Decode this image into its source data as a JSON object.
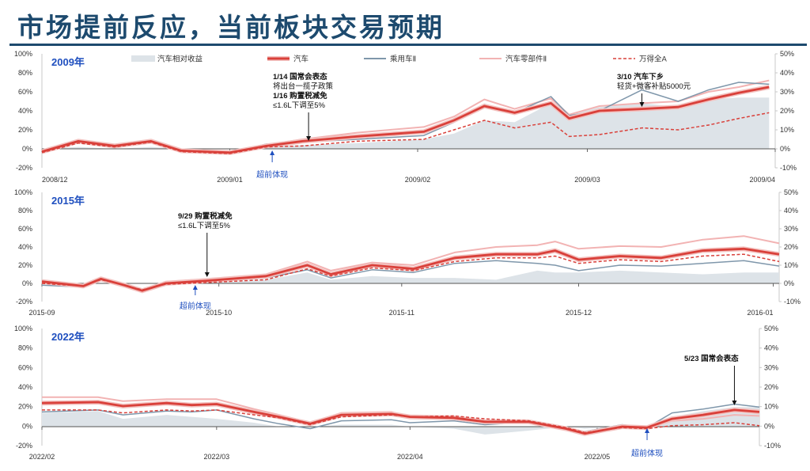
{
  "title": "市场提前反应，当前板块交易预期",
  "legend": [
    {
      "label": "汽车相对收益",
      "key": "relative"
    },
    {
      "label": "汽车",
      "key": "auto"
    },
    {
      "label": "乘用车Ⅱ",
      "key": "passenger"
    },
    {
      "label": "汽车零部件Ⅱ",
      "key": "parts"
    },
    {
      "label": "万得全A",
      "key": "winda"
    }
  ],
  "colors": {
    "title": "#1d4a6e",
    "auto": "#d9403a",
    "passenger": "#7f97ab",
    "parts": "#f2b3b3",
    "winda": "#d9403a",
    "relative": "#dde3e8",
    "year_label": "#1f4fbf",
    "lead_label": "#1f4fbf"
  },
  "chart_data": [
    {
      "type": "line",
      "year_label": "2009年",
      "left_axis": {
        "ticks": [
          "100%",
          "80%",
          "60%",
          "40%",
          "20%",
          "0%",
          "-20%"
        ],
        "ylim": [
          -20,
          100
        ]
      },
      "right_axis": {
        "ticks": [
          "50%",
          "40%",
          "30%",
          "20%",
          "10%",
          "0%",
          "-10%"
        ],
        "ylim": [
          -10,
          50
        ],
        "series": "relative"
      },
      "x_range": [
        "2008-12-01",
        "2009-04-01"
      ],
      "x_ticks": [
        {
          "date": "2008-12-01",
          "label": "2008/12"
        },
        {
          "date": "2009-01-01",
          "label": "2009/01"
        },
        {
          "date": "2009-02-01",
          "label": "2009/02"
        },
        {
          "date": "2009-03-01",
          "label": "2009/03"
        },
        {
          "date": "2009-04-01",
          "label": "2009/04"
        }
      ],
      "x": [
        "2008-12-01",
        "2008-12-07",
        "2008-12-13",
        "2008-12-19",
        "2008-12-24",
        "2009-01-01",
        "2009-01-07",
        "2009-01-13",
        "2009-01-22",
        "2009-02-02",
        "2009-02-07",
        "2009-02-12",
        "2009-02-17",
        "2009-02-23",
        "2009-02-26",
        "2009-03-03",
        "2009-03-10",
        "2009-03-16",
        "2009-03-21",
        "2009-03-26",
        "2009-03-31"
      ],
      "series": {
        "relative": [
          0,
          1,
          0,
          1,
          0,
          0,
          1,
          2,
          3,
          5,
          8,
          15,
          14,
          24,
          18,
          22,
          24,
          22,
          26,
          27,
          27
        ],
        "auto": [
          -3,
          8,
          3,
          8,
          -2,
          -4,
          3,
          8,
          13,
          18,
          30,
          45,
          38,
          48,
          32,
          40,
          42,
          44,
          52,
          59,
          65
        ],
        "passenger": [
          -2,
          9,
          3,
          8,
          -2,
          -4,
          5,
          7,
          10,
          14,
          28,
          47,
          38,
          55,
          35,
          40,
          62,
          50,
          62,
          70,
          68
        ],
        "parts": [
          -2,
          9,
          4,
          9,
          -1,
          -3,
          4,
          10,
          17,
          23,
          34,
          52,
          42,
          53,
          36,
          45,
          48,
          50,
          60,
          65,
          72
        ],
        "winda": [
          -4,
          6,
          2,
          7,
          -3,
          -5,
          2,
          3,
          8,
          10,
          20,
          30,
          22,
          28,
          13,
          15,
          22,
          20,
          25,
          32,
          38
        ]
      },
      "annotations": [
        {
          "date": "2009-01-14",
          "lines": [
            {
              "text": "1/14 国常会表态",
              "bold": true
            },
            {
              "text": "将出台一揽子政策",
              "bold": false
            },
            {
              "text": "1/16 购置税减免",
              "bold": true
            },
            {
              "text": "≤1.6L下调至5%",
              "bold": false
            }
          ]
        },
        {
          "date": "2009-03-10",
          "lines": [
            {
              "text": "3/10 汽车下乡",
              "bold": true
            },
            {
              "text": "轻货+微客补贴5000元",
              "bold": false
            }
          ]
        }
      ],
      "lead": {
        "date": "2009-01-08",
        "label": "超前体现"
      }
    },
    {
      "type": "line",
      "year_label": "2015年",
      "left_axis": {
        "ticks": [
          "100%",
          "80%",
          "60%",
          "40%",
          "20%",
          "0%",
          "-20%"
        ],
        "ylim": [
          -20,
          100
        ]
      },
      "right_axis": {
        "ticks": [
          "50%",
          "40%",
          "30%",
          "20%",
          "10%",
          "0%",
          "-10%"
        ],
        "ylim": [
          -10,
          50
        ],
        "series": "relative"
      },
      "x_range": [
        "2015-09-01",
        "2016-01-04"
      ],
      "x_ticks": [
        {
          "date": "2015-09-01",
          "label": "2015-09"
        },
        {
          "date": "2015-10-01",
          "label": "2015-10"
        },
        {
          "date": "2015-11-01",
          "label": "2015-11"
        },
        {
          "date": "2015-12-01",
          "label": "2015-12"
        },
        {
          "date": "2016-01-03",
          "label": "2016-01"
        }
      ],
      "x": [
        "2015-09-01",
        "2015-09-08",
        "2015-09-11",
        "2015-09-15",
        "2015-09-18",
        "2015-09-22",
        "2015-09-29",
        "2015-10-09",
        "2015-10-16",
        "2015-10-20",
        "2015-10-27",
        "2015-11-03",
        "2015-11-10",
        "2015-11-17",
        "2015-11-24",
        "2015-11-27",
        "2015-12-01",
        "2015-12-08",
        "2015-12-15",
        "2015-12-22",
        "2015-12-29",
        "2016-01-04"
      ],
      "series": {
        "relative": [
          0,
          0,
          0,
          0,
          0,
          0,
          0,
          2,
          6,
          2,
          4,
          3,
          3,
          2,
          7,
          6,
          6,
          7,
          6,
          5,
          6,
          6
        ],
        "auto": [
          2,
          -3,
          5,
          -2,
          -8,
          0,
          3,
          8,
          20,
          10,
          20,
          16,
          28,
          32,
          32,
          36,
          26,
          30,
          28,
          36,
          38,
          32
        ],
        "passenger": [
          -2,
          -4,
          3,
          -2,
          -7,
          -1,
          1,
          6,
          15,
          6,
          15,
          12,
          22,
          25,
          22,
          20,
          14,
          20,
          19,
          22,
          25,
          19
        ],
        "parts": [
          3,
          -2,
          6,
          -1,
          -7,
          2,
          5,
          10,
          24,
          14,
          23,
          20,
          34,
          40,
          42,
          46,
          38,
          41,
          40,
          48,
          52,
          44
        ],
        "winda": [
          0,
          -3,
          4,
          -2,
          -7,
          -1,
          1,
          4,
          16,
          8,
          17,
          14,
          24,
          28,
          28,
          30,
          22,
          26,
          24,
          30,
          32,
          24
        ]
      },
      "annotations": [
        {
          "date": "2015-09-29",
          "lines": [
            {
              "text": "9/29 购置税减免",
              "bold": true
            },
            {
              "text": "≤1.6L下调至5%",
              "bold": false
            }
          ]
        }
      ],
      "lead": {
        "date": "2015-09-27",
        "label": "超前体现"
      }
    },
    {
      "type": "line",
      "year_label": "2022年",
      "left_axis": {
        "ticks": [
          "100%",
          "80%",
          "60%",
          "40%",
          "20%",
          "0%",
          "-20%"
        ],
        "ylim": [
          -20,
          100
        ]
      },
      "right_axis": {
        "ticks": [
          "50%",
          "40%",
          "30%",
          "20%",
          "10%",
          "0%",
          "-10%"
        ],
        "ylim": [
          -10,
          50
        ],
        "series": "relative"
      },
      "x_range": [
        "2022-02-01",
        "2022-05-27"
      ],
      "x_ticks": [
        {
          "date": "2022-02-01",
          "label": "2022/02"
        },
        {
          "date": "2022-03-01",
          "label": "2022/03"
        },
        {
          "date": "2022-04-01",
          "label": "2022/04"
        },
        {
          "date": "2022-05-01",
          "label": "2022/05"
        }
      ],
      "x": [
        "2022-02-01",
        "2022-02-10",
        "2022-02-14",
        "2022-02-21",
        "2022-02-25",
        "2022-03-01",
        "2022-03-07",
        "2022-03-11",
        "2022-03-16",
        "2022-03-21",
        "2022-03-29",
        "2022-04-01",
        "2022-04-08",
        "2022-04-13",
        "2022-04-20",
        "2022-04-26",
        "2022-04-29",
        "2022-05-05",
        "2022-05-09",
        "2022-05-13",
        "2022-05-18",
        "2022-05-23",
        "2022-05-27"
      ],
      "series": {
        "relative": [
          7,
          8,
          4,
          6,
          5,
          4,
          2,
          0,
          0,
          1,
          1,
          0,
          -1,
          -4,
          -2,
          0,
          -1,
          0,
          0,
          5,
          8,
          10,
          10
        ],
        "auto": [
          24,
          25,
          21,
          24,
          22,
          23,
          15,
          10,
          3,
          12,
          13,
          10,
          9,
          5,
          5,
          -2,
          -7,
          0,
          -1,
          8,
          12,
          17,
          15
        ],
        "passenger": [
          15,
          17,
          12,
          16,
          15,
          17,
          8,
          3,
          -2,
          6,
          7,
          4,
          6,
          2,
          5,
          -1,
          -5,
          2,
          -1,
          14,
          18,
          23,
          20
        ],
        "parts": [
          30,
          30,
          26,
          28,
          28,
          28,
          18,
          12,
          4,
          14,
          15,
          10,
          10,
          4,
          4,
          -3,
          -8,
          0,
          -2,
          6,
          8,
          12,
          11
        ],
        "winda": [
          17,
          17,
          14,
          17,
          16,
          17,
          12,
          9,
          2,
          10,
          12,
          10,
          11,
          8,
          6,
          -1,
          -6,
          -1,
          -2,
          1,
          2,
          4,
          1
        ]
      },
      "annotations": [
        {
          "date": "2022-05-23",
          "lines": [
            {
              "text": "5/23 国常会表态",
              "bold": true
            }
          ]
        }
      ],
      "lead": {
        "date": "2022-05-09",
        "label": "超前体现"
      }
    }
  ]
}
